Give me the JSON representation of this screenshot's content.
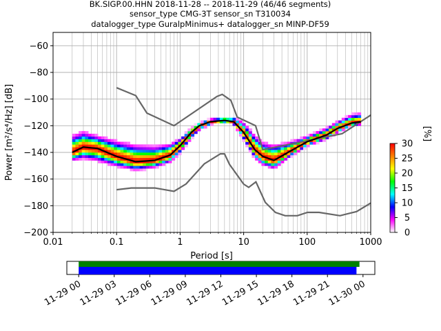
{
  "chart_data": {
    "type": "heatmap",
    "title_lines": [
      "BK.SIGP.00.HHN   2018-11-28 -- 2018-11-29  (46/46 segments)",
      "sensor_type CMG-3T sensor_sn T310034",
      "datalogger_type GuralpMinimus+ datalogger_sn MINP-DF59"
    ],
    "xlabel": "Period [s]",
    "ylabel": "Power [m²/s⁴/Hz] [dB]",
    "xscale": "log",
    "xlim": [
      0.01,
      1000
    ],
    "ylim": [
      -200,
      -50
    ],
    "xticks": [
      0.01,
      0.1,
      1,
      10,
      100,
      1000
    ],
    "xtick_labels": [
      "0.01",
      "0.1",
      "1",
      "10",
      "100",
      "1000"
    ],
    "yticks": [
      -200,
      -180,
      -160,
      -140,
      -120,
      -100,
      -80,
      -60
    ],
    "ytick_labels": [
      "−200",
      "−180",
      "−160",
      "−140",
      "−120",
      "−100",
      "−80",
      "−60"
    ],
    "grid": true,
    "colorbar": {
      "label": "[%]",
      "range": [
        0,
        30
      ],
      "ticks": [
        0,
        5,
        10,
        15,
        20,
        25,
        30
      ],
      "tick_labels": [
        "0",
        "5",
        "10",
        "15",
        "20",
        "25",
        "30"
      ],
      "colors": [
        "#ffffff",
        "#ff00ff",
        "#0000ff",
        "#00ffff",
        "#00ff00",
        "#ffff00",
        "#ff8000",
        "#ff0000"
      ]
    },
    "mode_curve": {
      "period": [
        0.02,
        0.03,
        0.05,
        0.1,
        0.2,
        0.4,
        0.7,
        1,
        1.5,
        2,
        3,
        5,
        7,
        10,
        15,
        20,
        30,
        50,
        100,
        200,
        300,
        500,
        700
      ],
      "power_db": [
        -140,
        -136,
        -137,
        -143,
        -147,
        -146,
        -142,
        -135,
        -125,
        -120,
        -117,
        -116,
        -117,
        -125,
        -138,
        -143,
        -146,
        -140,
        -132,
        -127,
        -122,
        -118,
        -117
      ]
    },
    "density_band": {
      "period": [
        0.02,
        0.03,
        0.05,
        0.1,
        0.2,
        0.4,
        0.7,
        1,
        1.5,
        2,
        3,
        5,
        7,
        10,
        15,
        20,
        30,
        50,
        100,
        200,
        300,
        500,
        700
      ],
      "upper_db": [
        -128,
        -125,
        -128,
        -132,
        -135,
        -136,
        -134,
        -130,
        -122,
        -118,
        -115,
        -114,
        -114,
        -118,
        -128,
        -133,
        -135,
        -133,
        -128,
        -122,
        -117,
        -112,
        -111
      ],
      "lower_db": [
        -146,
        -144,
        -146,
        -150,
        -153,
        -151,
        -147,
        -140,
        -129,
        -123,
        -119,
        -117,
        -119,
        -130,
        -144,
        -149,
        -152,
        -144,
        -135,
        -130,
        -125,
        -120,
        -119
      ]
    },
    "nhnm": {
      "period": [
        0.1,
        0.2,
        0.3,
        0.8,
        3.8,
        4.6,
        6.3,
        7.9,
        15.4,
        20,
        354.8,
        1000
      ],
      "power_db": [
        -91.5,
        -97.4,
        -110.5,
        -120,
        -98,
        -96.5,
        -101,
        -113.5,
        -120,
        -138,
        -126,
        -112
      ]
    },
    "nlnm": {
      "period": [
        0.1,
        0.17,
        0.4,
        0.8,
        1.24,
        2.4,
        4.3,
        5,
        6,
        10,
        12,
        15.6,
        21.9,
        31.6,
        45,
        70,
        101,
        154,
        328,
        600,
        1000
      ],
      "power_db": [
        -168,
        -166.7,
        -166.7,
        -169.2,
        -163.7,
        -148.6,
        -141.1,
        -141.1,
        -149,
        -163.8,
        -166.2,
        -162.1,
        -177.5,
        -185,
        -187.5,
        -187.5,
        -185,
        -185,
        -187.5,
        -184.4,
        -178
      ]
    },
    "time_axis": {
      "tick_labels": [
        "11-29 00",
        "11-29 03",
        "11-29 06",
        "11-29 09",
        "11-29 12",
        "11-29 15",
        "11-29 18",
        "11-29 21",
        "11-30 00"
      ],
      "hours_range": [
        -1,
        25
      ],
      "coverage_green": [
        0,
        23.7
      ],
      "coverage_blue": [
        0,
        23.45
      ],
      "green_color": "#008000",
      "blue_color": "#0000ff"
    },
    "colors": {
      "mode": "#000000",
      "models": "#666666",
      "grid": "#b0b0b0"
    }
  }
}
